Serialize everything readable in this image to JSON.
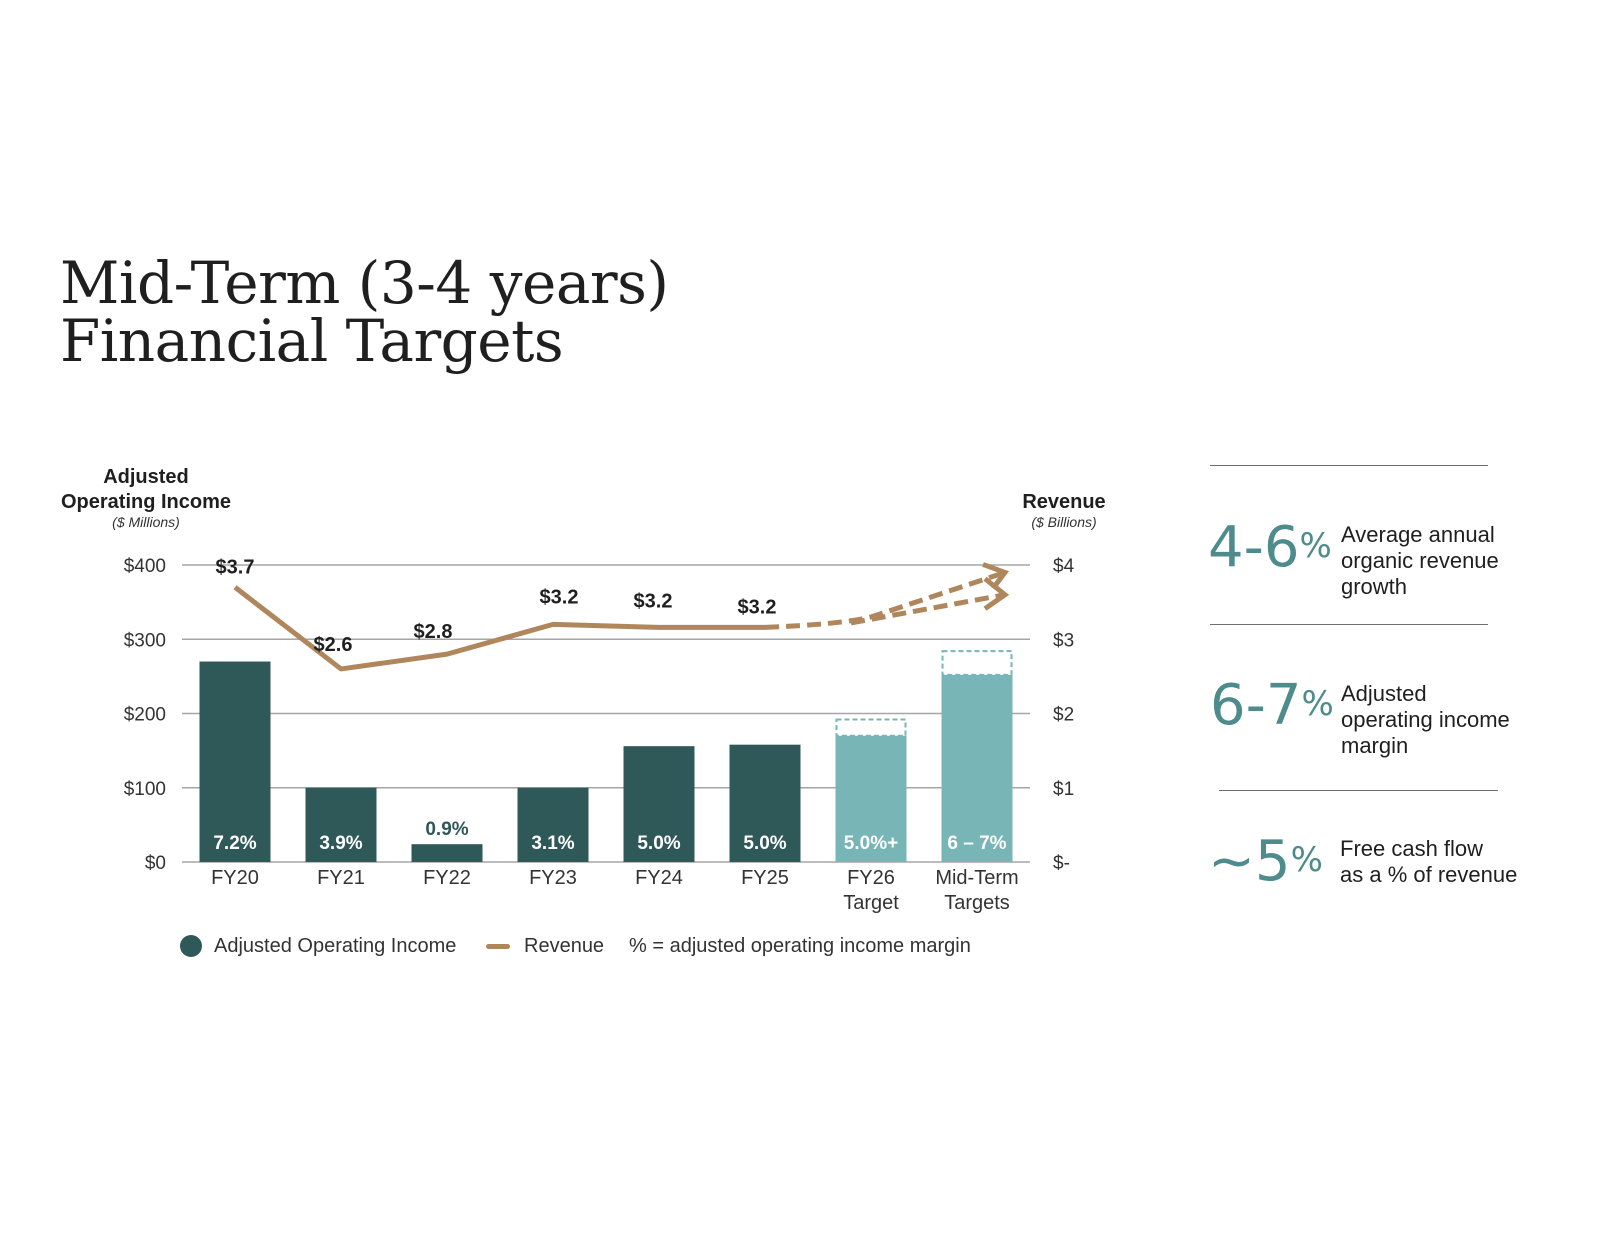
{
  "title": {
    "line1": "Mid-Term (3-4 years)",
    "line2": "Financial Targets"
  },
  "chart_data": {
    "type": "bar",
    "left_axis": {
      "label_line1": "Adjusted",
      "label_line2": "Operating Income",
      "unit": "($ Millions)",
      "ticks": [
        "$400",
        "$300",
        "$200",
        "$100",
        "$0"
      ],
      "ylim": [
        0,
        400
      ]
    },
    "right_axis": {
      "label": "Revenue",
      "unit": "($ Billions)",
      "ticks": [
        "$4",
        "$3",
        "$2",
        "$1",
        "$-"
      ],
      "ylim": [
        0,
        4
      ]
    },
    "categories": [
      {
        "line1": "FY20",
        "line2": ""
      },
      {
        "line1": "FY21",
        "line2": ""
      },
      {
        "line1": "FY22",
        "line2": ""
      },
      {
        "line1": "FY23",
        "line2": ""
      },
      {
        "line1": "FY24",
        "line2": ""
      },
      {
        "line1": "FY25",
        "line2": ""
      },
      {
        "line1": "FY26",
        "line2": "Target"
      },
      {
        "line1": "Mid-Term",
        "line2": "Targets"
      }
    ],
    "bars": {
      "values": [
        270,
        100,
        24,
        100,
        156,
        158,
        170,
        252
      ],
      "range_high": [
        null,
        null,
        null,
        null,
        null,
        null,
        192,
        284
      ],
      "target": [
        false,
        false,
        false,
        false,
        false,
        false,
        true,
        true
      ],
      "margin_labels": [
        "7.2%",
        "3.9%",
        "0.9%",
        "3.1%",
        "5.0%",
        "5.0%",
        "5.0%+",
        "6 – 7%"
      ]
    },
    "revenue": {
      "values": [
        3.7,
        2.6,
        2.8,
        3.2,
        3.16,
        3.16
      ],
      "labels": [
        "$3.7",
        "$2.6",
        "$2.8",
        "$3.2",
        "$3.2",
        "$3.2"
      ],
      "projection_low": 3.6,
      "projection_high": 3.9
    },
    "grid": true,
    "colors": {
      "bar_actual": "#2f5859",
      "bar_target": "#78b5b6",
      "target_range_border": "#78b5b6",
      "revenue_line": "#b0875c",
      "gridline": "#a6a6a6"
    },
    "legend": {
      "placement": "bottom",
      "items": [
        "Adjusted Operating Income",
        "Revenue",
        "% = adjusted operating income margin"
      ]
    }
  },
  "kpis": [
    {
      "value": "4-6",
      "suffix": "%",
      "line1": "Average annual",
      "line2": "organic revenue",
      "line3": "growth"
    },
    {
      "value": "6-7",
      "suffix": "%",
      "line1": "Adjusted",
      "line2": "operating income",
      "line3": "margin"
    },
    {
      "value": "~5",
      "suffix": "%",
      "line1": "Free cash flow",
      "line2": "as a % of revenue",
      "line3": ""
    }
  ]
}
